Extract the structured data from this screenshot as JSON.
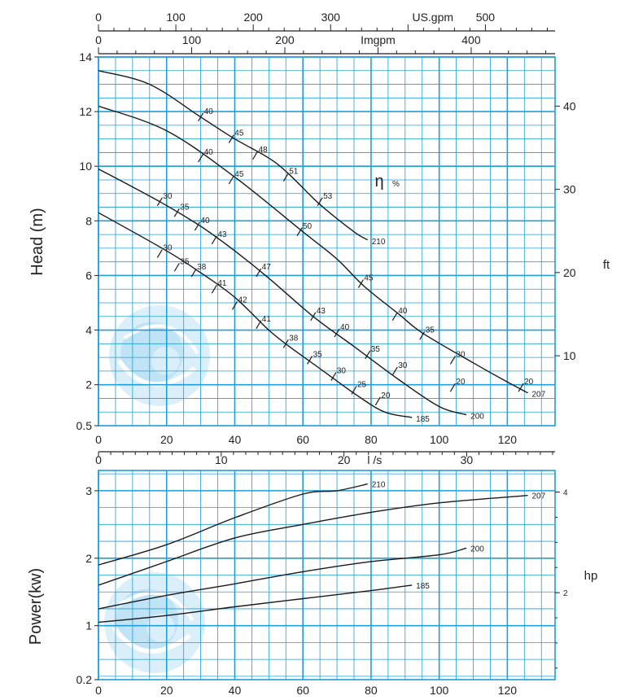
{
  "chart_data": [
    {
      "type": "line",
      "x_axis": {
        "label": "",
        "ticks": [
          0,
          20,
          40,
          60,
          80,
          100,
          120
        ],
        "range": [
          0,
          134
        ]
      },
      "x2_axis": {
        "label": "l /s",
        "ticks": [
          0,
          10,
          20,
          30
        ],
        "range": [
          0,
          37.2
        ]
      },
      "x3_axis": {
        "label": "Imgpm",
        "ticks": [
          0,
          100,
          200,
          400
        ],
        "range": [
          0,
          490
        ]
      },
      "x4_axis": {
        "label": "US.gpm",
        "ticks": [
          0,
          100,
          200,
          300,
          500
        ],
        "range": [
          0,
          590
        ]
      },
      "y_axis": {
        "label": "Head (m)",
        "ticks": [
          0.5,
          2,
          4,
          6,
          8,
          10,
          12,
          14
        ],
        "range": [
          0.5,
          14
        ]
      },
      "y2_axis": {
        "label": "ft",
        "ticks": [
          10,
          20,
          30,
          40
        ],
        "range": [
          1.6,
          45.9
        ]
      },
      "efficiency_label": "η",
      "efficiency_unit": "%",
      "grid": true,
      "series": [
        {
          "name": "210",
          "points": [
            [
              0,
              13.5
            ],
            [
              15,
              13.0
            ],
            [
              30,
              11.8
            ],
            [
              40,
              11.0
            ],
            [
              50,
              10.3
            ],
            [
              56,
              9.7
            ],
            [
              65,
              8.6
            ],
            [
              75,
              7.6
            ],
            [
              79,
              7.3
            ]
          ]
        },
        {
          "name": "207",
          "points": [
            [
              0,
              12.2
            ],
            [
              20,
              11.3
            ],
            [
              40,
              9.6
            ],
            [
              60,
              7.6
            ],
            [
              70,
              6.6
            ],
            [
              78,
              5.6
            ],
            [
              88,
              4.6
            ],
            [
              95,
              3.9
            ],
            [
              110,
              2.8
            ],
            [
              120,
              2.1
            ],
            [
              126,
              1.7
            ]
          ]
        },
        {
          "name": "200",
          "points": [
            [
              0,
              9.9
            ],
            [
              18,
              8.7
            ],
            [
              30,
              7.8
            ],
            [
              40,
              6.9
            ],
            [
              50,
              5.9
            ],
            [
              63,
              4.5
            ],
            [
              75,
              3.4
            ],
            [
              88,
              2.2
            ],
            [
              100,
              1.2
            ],
            [
              108,
              0.9
            ]
          ]
        },
        {
          "name": "185",
          "points": [
            [
              0,
              8.3
            ],
            [
              20,
              6.9
            ],
            [
              30,
              6.1
            ],
            [
              40,
              5.2
            ],
            [
              50,
              4.0
            ],
            [
              56,
              3.4
            ],
            [
              66,
              2.5
            ],
            [
              76,
              1.6
            ],
            [
              84,
              1.0
            ],
            [
              92,
              0.8
            ]
          ]
        }
      ],
      "efficiency_marks": [
        {
          "series": "210",
          "points": [
            [
              30,
              11.8,
              "40"
            ],
            [
              39,
              11.0,
              "45"
            ],
            [
              46,
              10.4,
              "48"
            ],
            [
              55,
              9.6,
              "51"
            ],
            [
              65,
              8.7,
              "53"
            ]
          ]
        },
        {
          "series": "207",
          "points": [
            [
              30,
              10.3,
              "40"
            ],
            [
              39,
              9.5,
              "45"
            ],
            [
              59,
              7.6,
              "50"
            ],
            [
              77,
              5.7,
              "45"
            ],
            [
              87,
              4.5,
              "40"
            ],
            [
              95,
              3.8,
              "35"
            ],
            [
              104,
              2.9,
              "30"
            ],
            [
              124,
              1.9,
              "20"
            ]
          ]
        },
        {
          "series": "200",
          "points": [
            [
              18,
              8.7,
              "30"
            ],
            [
              23,
              8.3,
              "35"
            ],
            [
              29,
              7.8,
              "40"
            ],
            [
              34,
              7.3,
              "43"
            ],
            [
              47,
              6.1,
              "47"
            ],
            [
              63,
              4.5,
              "43"
            ],
            [
              70,
              3.9,
              "40"
            ],
            [
              79,
              3.1,
              "35"
            ],
            [
              87,
              2.5,
              "30"
            ],
            [
              104,
              1.9,
              "20"
            ]
          ]
        },
        {
          "series": "185",
          "points": [
            [
              18,
              6.8,
              "30"
            ],
            [
              23,
              6.3,
              "35"
            ],
            [
              28,
              6.1,
              "38"
            ],
            [
              34,
              5.5,
              "41"
            ],
            [
              40,
              4.9,
              "42"
            ],
            [
              47,
              4.2,
              "41"
            ],
            [
              55,
              3.5,
              "38"
            ],
            [
              62,
              2.9,
              "35"
            ],
            [
              69,
              2.3,
              "30"
            ],
            [
              75,
              1.8,
              "25"
            ],
            [
              82,
              1.4,
              "20"
            ]
          ]
        }
      ]
    },
    {
      "type": "line",
      "x_axis": {
        "label": "",
        "ticks": [
          0,
          20,
          40,
          60,
          80,
          100,
          120
        ],
        "range": [
          0,
          134
        ]
      },
      "y_axis": {
        "label": "Power(kw)",
        "ticks": [
          0.2,
          1,
          2,
          3
        ],
        "range": [
          0.2,
          3.3
        ]
      },
      "y2_axis": {
        "label": "hp",
        "ticks": [
          2,
          4
        ],
        "range": [
          0.27,
          4.43
        ]
      },
      "grid": true,
      "series": [
        {
          "name": "210",
          "points": [
            [
              0,
              1.9
            ],
            [
              20,
              2.2
            ],
            [
              40,
              2.6
            ],
            [
              60,
              2.95
            ],
            [
              70,
              3.0
            ],
            [
              79,
              3.1
            ]
          ]
        },
        {
          "name": "207",
          "points": [
            [
              0,
              1.6
            ],
            [
              20,
              1.95
            ],
            [
              40,
              2.3
            ],
            [
              60,
              2.5
            ],
            [
              80,
              2.68
            ],
            [
              100,
              2.82
            ],
            [
              126,
              2.93
            ]
          ]
        },
        {
          "name": "200",
          "points": [
            [
              0,
              1.25
            ],
            [
              20,
              1.45
            ],
            [
              40,
              1.62
            ],
            [
              60,
              1.8
            ],
            [
              80,
              1.95
            ],
            [
              100,
              2.05
            ],
            [
              108,
              2.15
            ]
          ]
        },
        {
          "name": "185",
          "points": [
            [
              0,
              1.05
            ],
            [
              20,
              1.15
            ],
            [
              40,
              1.28
            ],
            [
              60,
              1.4
            ],
            [
              80,
              1.52
            ],
            [
              92,
              1.6
            ]
          ]
        }
      ]
    }
  ]
}
